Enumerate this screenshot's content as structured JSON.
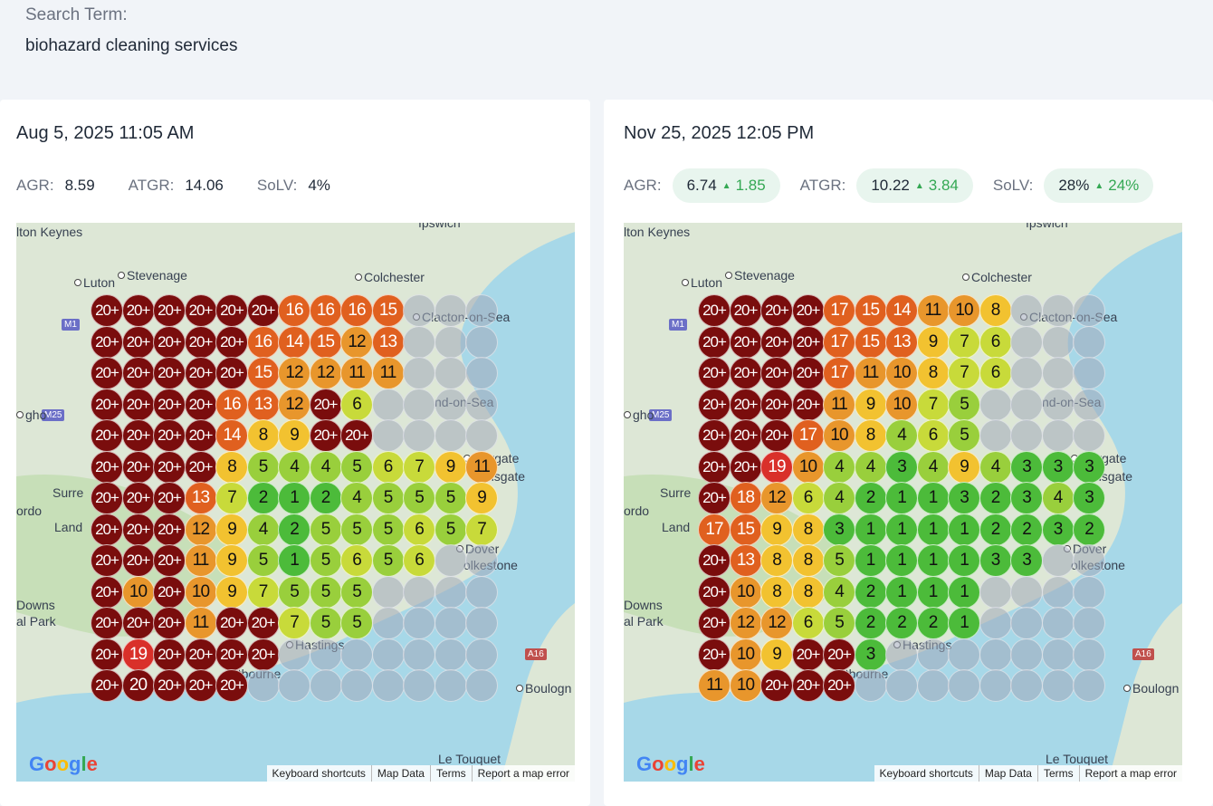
{
  "search": {
    "label": "Search Term:",
    "value": "biohazard cleaning services"
  },
  "colors": {
    "dark_red": "#7a0d0d",
    "red": "#d9302a",
    "orange_red": "#e0601f",
    "orange": "#e8962c",
    "yellow": "#f2c230",
    "yellow_green": "#c8da3a",
    "light_green": "#99cf3c",
    "green": "#4cbb3a",
    "empty": "#a0aab9"
  },
  "map_labels": {
    "milton_keynes": "lton Keynes",
    "ipswich": "ıpswich",
    "stevenage": "Stevenage",
    "luton": "Luton",
    "colchester": "Colchester",
    "clacton": "Clacton-on-Sea",
    "m1": "M1",
    "m25": "M25",
    "southend": "nd-on-Sea",
    "margate": "Margate",
    "ramsgate": "nsgate",
    "surrey": "Surre",
    "lando": "Land",
    "ordo": "ordo",
    "gho": "gho",
    "dover": "Dover",
    "folkestone": "olkestone",
    "downs": "Downs",
    "park": "al Park",
    "hastings": "Hastings",
    "eastbourne": "astbourne",
    "a16": "A16",
    "boulogne": "Boulogn",
    "le_touquet": "Le Touquet"
  },
  "attribution": {
    "keyboard": "Keyboard shortcuts",
    "map_data": "Map Data",
    "terms": "Terms",
    "report": "Report a map error"
  },
  "google": [
    "G",
    "o",
    "o",
    "g",
    "l",
    "e"
  ],
  "panels": [
    {
      "title": "Aug 5, 2025 11:05 AM",
      "metrics": [
        {
          "label": "AGR:",
          "value": "8.59",
          "delta": ""
        },
        {
          "label": "ATGR:",
          "value": "14.06",
          "delta": ""
        },
        {
          "label": "SoLV:",
          "value": "4%",
          "delta": ""
        }
      ],
      "grid": [
        [
          "20+",
          "20+",
          "20+",
          "20+",
          "20+",
          "20+",
          "16",
          "16",
          "16",
          "15",
          "",
          "",
          ""
        ],
        [
          "20+",
          "20+",
          "20+",
          "20+",
          "20+",
          "16",
          "14",
          "15",
          "12",
          "13",
          "",
          "",
          ""
        ],
        [
          "20+",
          "20+",
          "20+",
          "20+",
          "20+",
          "15",
          "12",
          "12",
          "11",
          "11",
          "",
          "",
          ""
        ],
        [
          "20+",
          "20+",
          "20+",
          "20+",
          "16",
          "13",
          "12",
          "20+",
          "6",
          "",
          "",
          "",
          ""
        ],
        [
          "20+",
          "20+",
          "20+",
          "20+",
          "14",
          "8",
          "9",
          "20+",
          "20+",
          "",
          "",
          "",
          ""
        ],
        [
          "20+",
          "20+",
          "20+",
          "20+",
          "8",
          "5",
          "4",
          "4",
          "5",
          "6",
          "7",
          "9",
          "11"
        ],
        [
          "20+",
          "20+",
          "20+",
          "13",
          "7",
          "2",
          "1",
          "2",
          "4",
          "5",
          "5",
          "5",
          "9"
        ],
        [
          "20+",
          "20+",
          "20+",
          "12",
          "9",
          "4",
          "2",
          "5",
          "5",
          "5",
          "6",
          "5",
          "7"
        ],
        [
          "20+",
          "20+",
          "20+",
          "11",
          "9",
          "5",
          "1",
          "5",
          "6",
          "5",
          "6",
          "",
          ""
        ],
        [
          "20+",
          "10",
          "20+",
          "10",
          "9",
          "7",
          "5",
          "5",
          "5",
          "",
          "",
          "",
          ""
        ],
        [
          "20+",
          "20+",
          "20+",
          "11",
          "20+",
          "20+",
          "7",
          "5",
          "5",
          "",
          "",
          "",
          ""
        ],
        [
          "20+",
          "19",
          "20+",
          "20+",
          "20+",
          "20+",
          "",
          "",
          "",
          "",
          "",
          "",
          ""
        ],
        [
          "20+",
          "20",
          "20+",
          "20+",
          "20+",
          "",
          "",
          "",
          "",
          "",
          "",
          "",
          ""
        ]
      ]
    },
    {
      "title": "Nov 25, 2025 12:05 PM",
      "metrics": [
        {
          "label": "AGR:",
          "value": "6.74",
          "delta": "1.85"
        },
        {
          "label": "ATGR:",
          "value": "10.22",
          "delta": "3.84"
        },
        {
          "label": "SoLV:",
          "value": "28%",
          "delta": "24%"
        }
      ],
      "grid": [
        [
          "20+",
          "20+",
          "20+",
          "20+",
          "17",
          "15",
          "14",
          "11",
          "10",
          "8",
          "",
          "",
          ""
        ],
        [
          "20+",
          "20+",
          "20+",
          "20+",
          "17",
          "15",
          "13",
          "9",
          "7",
          "6",
          "",
          "",
          ""
        ],
        [
          "20+",
          "20+",
          "20+",
          "20+",
          "17",
          "11",
          "10",
          "8",
          "7",
          "6",
          "",
          "",
          ""
        ],
        [
          "20+",
          "20+",
          "20+",
          "20+",
          "11",
          "9",
          "10",
          "7",
          "5",
          "",
          "",
          "",
          ""
        ],
        [
          "20+",
          "20+",
          "20+",
          "17",
          "10",
          "8",
          "4",
          "6",
          "5",
          "",
          "",
          "",
          ""
        ],
        [
          "20+",
          "20+",
          "19",
          "10",
          "4",
          "4",
          "3",
          "4",
          "9",
          "4",
          "3",
          "3",
          "3"
        ],
        [
          "20+",
          "18",
          "12",
          "6",
          "4",
          "2",
          "1",
          "1",
          "3",
          "2",
          "3",
          "4",
          "3"
        ],
        [
          "17",
          "15",
          "9",
          "8",
          "3",
          "1",
          "1",
          "1",
          "1",
          "2",
          "2",
          "3",
          "2"
        ],
        [
          "20+",
          "13",
          "8",
          "8",
          "5",
          "1",
          "1",
          "1",
          "1",
          "3",
          "3",
          "",
          ""
        ],
        [
          "20+",
          "10",
          "8",
          "8",
          "4",
          "2",
          "1",
          "1",
          "1",
          "",
          "",
          "",
          ""
        ],
        [
          "20+",
          "12",
          "12",
          "6",
          "5",
          "2",
          "2",
          "2",
          "1",
          "",
          "",
          "",
          ""
        ],
        [
          "20+",
          "10",
          "9",
          "20+",
          "20+",
          "3",
          "",
          "",
          "",
          "",
          "",
          "",
          ""
        ],
        [
          "11",
          "10",
          "20+",
          "20+",
          "20+",
          "",
          "",
          "",
          "",
          "",
          "",
          "",
          ""
        ]
      ]
    }
  ]
}
